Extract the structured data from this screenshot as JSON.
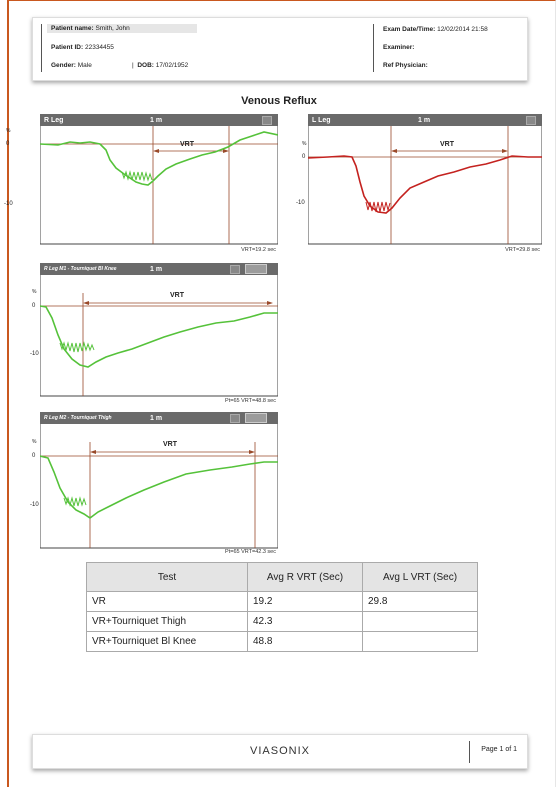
{
  "header": {
    "patient_name_label": "Patient name:",
    "patient_name": "Smith, John",
    "patient_id_label": "Patient ID:",
    "patient_id": "22334455",
    "gender_label": "Gender:",
    "gender": "Male",
    "dob_label": "DOB:",
    "dob": "17/02/1952",
    "exam_label": "Exam Date/Time:",
    "exam": "12/02/2014 21:58",
    "examiner_label": "Examiner:",
    "physician_label": "Ref Physician:"
  },
  "page_title": "Venous Reflux",
  "charts": {
    "r_leg": {
      "title": "R Leg",
      "time": "1 m",
      "marker": "VRT",
      "footer": "VRT=19.2 sec",
      "unit": "%",
      "ticks": [
        "0",
        "-10"
      ],
      "color": "#55c23a"
    },
    "l_leg": {
      "title": "L Leg",
      "time": "1 m",
      "marker": "VRT",
      "footer": "VRT=29.8 sec",
      "unit": "%",
      "ticks": [
        "0",
        "-10"
      ],
      "color": "#c4221f"
    },
    "r_leg_m1": {
      "title": "R Leg M1 - Tourniquet Bl Knee",
      "time": "1 m",
      "marker": "VRT",
      "footer": "Pt=65  VRT=48.8 sec",
      "unit": "%",
      "ticks": [
        "0",
        "-10"
      ],
      "color": "#55c23a"
    },
    "r_leg_m2": {
      "title": "R Leg M2 - Tourniquet Thigh",
      "time": "1 m",
      "marker": "VRT",
      "footer": "Pt=65  VRT=42.3 sec",
      "unit": "%",
      "ticks": [
        "0",
        "-10"
      ],
      "color": "#55c23a"
    }
  },
  "results_table": {
    "headers": [
      "Test",
      "Avg R VRT (Sec)",
      "Avg L VRT (Sec)"
    ],
    "rows": [
      [
        "VR",
        "19.2",
        "29.8"
      ],
      [
        "VR+Tourniquet Thigh",
        "42.3",
        ""
      ],
      [
        "VR+Tourniquet Bl Knee",
        "48.8",
        ""
      ]
    ]
  },
  "footer": {
    "brand": "VIASONIX",
    "page": "Page 1 of 1"
  }
}
